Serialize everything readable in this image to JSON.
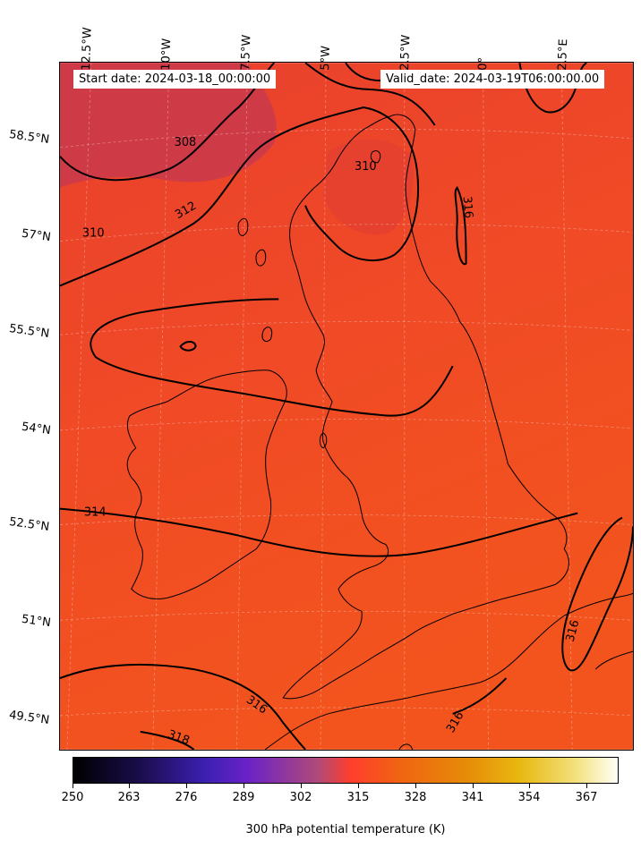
{
  "header": {
    "start_date": "Start date: 2024-03-18_00:00:00",
    "valid_date": "Valid_date: 2024-03-19T06:00:00.00"
  },
  "longitude_labels": [
    "12.5°W",
    "10°W",
    "7.5°W",
    "5°W",
    "2.5°W",
    "0°",
    "2.5°E"
  ],
  "latitude_labels": [
    "58.5°N",
    "57°N",
    "55.5°N",
    "54°N",
    "52.5°N",
    "51°N",
    "49.5°N"
  ],
  "contour_labels": [
    "308",
    "310",
    "310",
    "312",
    "314",
    "316",
    "316",
    "316",
    "316",
    "318"
  ],
  "colorbar": {
    "title": "300 hPa potential temperature (K)",
    "ticks": [
      "250",
      "263",
      "276",
      "289",
      "302",
      "315",
      "328",
      "341",
      "354",
      "367"
    ],
    "range": [
      250,
      380
    ],
    "colormap": "CMRmap"
  },
  "colors": {
    "field_cool": "#c9384e",
    "field_mid": "#f04a26",
    "field_warm": "#f3541d",
    "contour": "#000000",
    "coastline": "#000000"
  }
}
